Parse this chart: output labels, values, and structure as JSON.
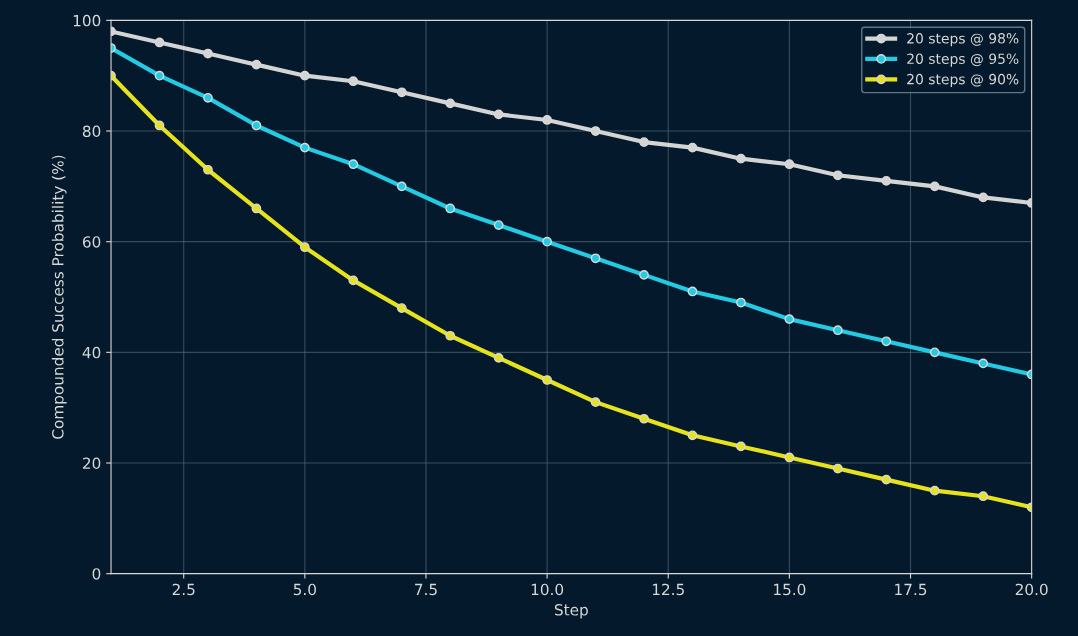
{
  "chart_data": {
    "type": "line",
    "xlabel": "Step",
    "ylabel": "Compounded Success Probability (%)",
    "x": [
      1,
      2,
      3,
      4,
      5,
      6,
      7,
      8,
      9,
      10,
      11,
      12,
      13,
      14,
      15,
      16,
      17,
      18,
      19,
      20
    ],
    "series": [
      {
        "name": "20 steps @ 98%",
        "color": "#d4d4d4",
        "values": [
          98,
          96,
          94,
          92,
          90,
          89,
          87,
          85,
          83,
          82,
          80,
          78,
          77,
          75,
          74,
          72,
          71,
          70,
          68,
          67
        ]
      },
      {
        "name": "20 steps @ 95%",
        "color": "#22cbe3",
        "values": [
          95,
          90,
          86,
          81,
          77,
          74,
          70,
          66,
          63,
          60,
          57,
          54,
          51,
          49,
          46,
          44,
          42,
          40,
          38,
          36
        ]
      },
      {
        "name": "20 steps @ 90%",
        "color": "#e6e21c",
        "values": [
          90,
          81,
          73,
          66,
          59,
          53,
          48,
          43,
          39,
          35,
          31,
          28,
          25,
          23,
          21,
          19,
          17,
          15,
          14,
          12
        ]
      }
    ],
    "xlim": [
      1,
      20
    ],
    "xticks": [
      {
        "value": 2.5,
        "label": "2.5"
      },
      {
        "value": 5,
        "label": "5.0"
      },
      {
        "value": 7.5,
        "label": "7.5"
      },
      {
        "value": 10,
        "label": "10.0"
      },
      {
        "value": 12.5,
        "label": "12.5"
      },
      {
        "value": 15,
        "label": "15.0"
      },
      {
        "value": 17.5,
        "label": "17.5"
      },
      {
        "value": 20,
        "label": "20.0"
      }
    ],
    "ylim": [
      0,
      100
    ],
    "yticks": [
      0,
      20,
      40,
      60,
      80,
      100
    ],
    "grid": true,
    "legend": "top right",
    "marker": "circle",
    "line_style": "solid"
  }
}
